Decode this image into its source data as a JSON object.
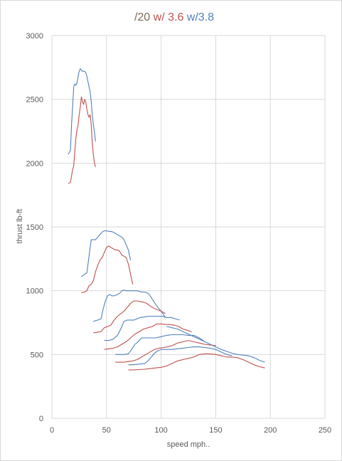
{
  "chart_data": {
    "type": "line",
    "title_parts": [
      {
        "text": "/20",
        "color": "#7f6a55"
      },
      {
        "text": " w/ 3.6",
        "color": "#c0504d"
      },
      {
        "text": "  w/3.8",
        "color": "#4f81bd"
      }
    ],
    "xlabel": "speed mph..",
    "ylabel": "thrust lb-ft",
    "xlim": [
      0,
      250
    ],
    "ylim": [
      0,
      3000
    ],
    "xticks": [
      "0",
      "50",
      "100",
      "150",
      "200",
      "250"
    ],
    "yticks": [
      "0",
      "500",
      "1000",
      "1500",
      "2000",
      "2500",
      "3000"
    ],
    "grid": true,
    "colors": {
      "red": "#c0504d",
      "blue": "#4f81bd"
    },
    "series": [
      {
        "color": "blue",
        "x": [
          15,
          17,
          18,
          19,
          20,
          21,
          22,
          23,
          24,
          25,
          26,
          27,
          28,
          29,
          30,
          31,
          32,
          33,
          34,
          35,
          36,
          37,
          38,
          39,
          40
        ],
        "y": [
          2070,
          2100,
          2300,
          2450,
          2600,
          2620,
          2610,
          2630,
          2680,
          2720,
          2740,
          2730,
          2720,
          2720,
          2720,
          2710,
          2680,
          2640,
          2600,
          2560,
          2480,
          2380,
          2300,
          2240,
          2170
        ]
      },
      {
        "color": "red",
        "x": [
          15,
          17,
          18,
          19,
          20,
          21,
          22,
          23,
          24,
          25,
          26,
          27,
          28,
          29,
          30,
          31,
          32,
          33,
          34,
          35,
          36,
          37,
          38,
          39,
          40
        ],
        "y": [
          1840,
          1850,
          1900,
          1950,
          1980,
          2100,
          2200,
          2260,
          2300,
          2380,
          2440,
          2520,
          2480,
          2460,
          2500,
          2480,
          2420,
          2380,
          2360,
          2380,
          2300,
          2160,
          2060,
          2000,
          1970
        ]
      },
      {
        "color": "blue",
        "x": [
          27,
          30,
          32,
          34,
          36,
          37,
          38,
          40,
          42,
          44,
          46,
          48,
          50,
          52,
          54,
          56,
          58,
          60,
          62,
          64,
          66,
          68,
          70,
          72
        ],
        "y": [
          1110,
          1130,
          1140,
          1270,
          1400,
          1400,
          1400,
          1400,
          1420,
          1440,
          1460,
          1470,
          1470,
          1465,
          1465,
          1460,
          1450,
          1440,
          1430,
          1420,
          1400,
          1360,
          1320,
          1240
        ]
      },
      {
        "color": "red",
        "x": [
          27,
          30,
          32,
          34,
          36,
          38,
          40,
          42,
          44,
          46,
          48,
          50,
          52,
          54,
          56,
          58,
          60,
          62,
          64,
          66,
          68,
          70,
          72,
          74
        ],
        "y": [
          985,
          990,
          1000,
          1040,
          1050,
          1080,
          1150,
          1200,
          1240,
          1260,
          1300,
          1340,
          1350,
          1340,
          1330,
          1320,
          1320,
          1310,
          1280,
          1270,
          1260,
          1210,
          1130,
          1050
        ]
      },
      {
        "color": "blue",
        "x": [
          38,
          42,
          45,
          47,
          49,
          51,
          53,
          55,
          57,
          60,
          62,
          64,
          66,
          68,
          70,
          72,
          75,
          78,
          82,
          85,
          88,
          90,
          93,
          96,
          100,
          104
        ],
        "y": [
          760,
          770,
          780,
          860,
          920,
          960,
          970,
          960,
          960,
          970,
          980,
          1000,
          1005,
          1000,
          1000,
          1000,
          1000,
          1000,
          990,
          990,
          980,
          960,
          920,
          880,
          840,
          790
        ]
      },
      {
        "color": "red",
        "x": [
          38,
          42,
          45,
          48,
          51,
          54,
          57,
          60,
          63,
          66,
          69,
          72,
          75,
          78,
          81,
          84,
          87,
          90,
          94,
          97,
          100,
          104
        ],
        "y": [
          670,
          675,
          680,
          710,
          720,
          730,
          770,
          800,
          820,
          840,
          870,
          900,
          920,
          920,
          915,
          910,
          900,
          880,
          860,
          850,
          840,
          820
        ]
      },
      {
        "color": "blue",
        "x": [
          48,
          52,
          56,
          60,
          63,
          66,
          69,
          72,
          75,
          78,
          81,
          85,
          89,
          93,
          97,
          101,
          105,
          109,
          113,
          117
        ],
        "y": [
          610,
          610,
          620,
          650,
          700,
          760,
          770,
          770,
          770,
          780,
          790,
          795,
          800,
          800,
          800,
          800,
          790,
          790,
          780,
          770
        ]
      },
      {
        "color": "red",
        "x": [
          48,
          52,
          56,
          60,
          64,
          68,
          72,
          76,
          80,
          84,
          88,
          92,
          96,
          100,
          104,
          108,
          112,
          116,
          120,
          124,
          128
        ],
        "y": [
          540,
          545,
          550,
          560,
          580,
          600,
          630,
          660,
          680,
          700,
          710,
          720,
          740,
          740,
          735,
          735,
          730,
          720,
          700,
          690,
          680
        ]
      },
      {
        "color": "blue",
        "x": [
          58,
          62,
          66,
          70,
          73,
          76,
          79,
          82,
          86,
          90,
          95,
          100,
          105,
          110,
          115,
          120,
          125,
          130,
          135,
          140
        ],
        "y": [
          500,
          500,
          500,
          505,
          540,
          580,
          600,
          630,
          630,
          630,
          630,
          640,
          650,
          655,
          655,
          655,
          650,
          650,
          630,
          600
        ]
      },
      {
        "color": "red",
        "x": [
          58,
          62,
          66,
          70,
          74,
          78,
          82,
          86,
          90,
          94,
          98,
          102,
          106,
          110,
          115,
          120,
          125,
          130,
          135,
          140,
          145,
          150
        ],
        "y": [
          440,
          440,
          440,
          445,
          450,
          460,
          480,
          500,
          520,
          540,
          550,
          555,
          560,
          570,
          590,
          600,
          610,
          600,
          590,
          580,
          575,
          570
        ]
      },
      {
        "color": "blue",
        "x": [
          70,
          75,
          80,
          85,
          88,
          91,
          94,
          97,
          100,
          105,
          110,
          115,
          120,
          125,
          130,
          135,
          140,
          145,
          150,
          155,
          160,
          165
        ],
        "y": [
          420,
          420,
          425,
          430,
          450,
          480,
          510,
          530,
          540,
          540,
          540,
          545,
          550,
          555,
          560,
          560,
          555,
          550,
          540,
          520,
          500,
          490
        ]
      },
      {
        "color": "red",
        "x": [
          70,
          75,
          80,
          85,
          90,
          95,
          100,
          105,
          110,
          115,
          120,
          125,
          130,
          135,
          140,
          145,
          150,
          155,
          160,
          165,
          170,
          175,
          180,
          185,
          190,
          195
        ],
        "y": [
          380,
          380,
          382,
          385,
          390,
          395,
          400,
          410,
          430,
          450,
          460,
          470,
          480,
          500,
          505,
          505,
          500,
          490,
          480,
          480,
          475,
          460,
          440,
          420,
          405,
          395
        ]
      },
      {
        "color": "blue",
        "x": [
          105,
          110,
          115,
          120,
          125,
          130,
          135,
          140,
          145,
          150,
          155,
          160,
          165,
          170,
          175,
          180,
          185,
          190,
          195
        ],
        "y": [
          720,
          710,
          700,
          680,
          660,
          640,
          620,
          600,
          580,
          560,
          540,
          525,
          510,
          500,
          495,
          490,
          475,
          455,
          440
        ]
      }
    ]
  }
}
